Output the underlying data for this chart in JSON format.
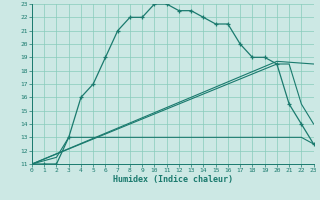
{
  "xlabel": "Humidex (Indice chaleur)",
  "bg_color": "#cce8e4",
  "line_color": "#1a7a6e",
  "xlim": [
    0,
    23
  ],
  "ylim": [
    11,
    23
  ],
  "xticks": [
    0,
    1,
    2,
    3,
    4,
    5,
    6,
    7,
    8,
    9,
    10,
    11,
    12,
    13,
    14,
    15,
    16,
    17,
    18,
    19,
    20,
    21,
    22,
    23
  ],
  "yticks": [
    11,
    12,
    13,
    14,
    15,
    16,
    17,
    18,
    19,
    20,
    21,
    22,
    23
  ],
  "line1_x": [
    0,
    1,
    2,
    3,
    4,
    5,
    6,
    7,
    8,
    9,
    10,
    11,
    12,
    13,
    14,
    15,
    16,
    17,
    18,
    19,
    20,
    21,
    22,
    23
  ],
  "line1_y": [
    11,
    11,
    11,
    13,
    16,
    17,
    19,
    21,
    22,
    22,
    23,
    23,
    22.5,
    22.5,
    22,
    21.5,
    21.5,
    20,
    19,
    19,
    18.5,
    15.5,
    14,
    12.5
  ],
  "line2_x": [
    0,
    2,
    3,
    10,
    17,
    18,
    19,
    22,
    23
  ],
  "line2_y": [
    11,
    11.5,
    13,
    13,
    13,
    13,
    13,
    13,
    12.5
  ],
  "line3_x": [
    0,
    20,
    21,
    22,
    23
  ],
  "line3_y": [
    11,
    18.5,
    18.5,
    15.5,
    14
  ],
  "line4_x": [
    0,
    20,
    23
  ],
  "line4_y": [
    11,
    18.7,
    18.5
  ]
}
